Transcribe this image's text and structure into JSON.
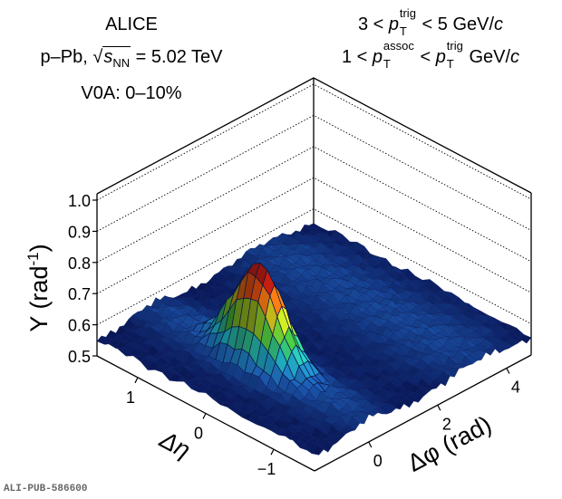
{
  "chart_data": {
    "type": "surface3d",
    "title_lines_left": [
      "ALICE",
      "p–Pb, √s_NN = 5.02 TeV",
      "V0A: 0–10%"
    ],
    "title_lines_right": [
      "3 < p_T^trig < 5 GeV/c",
      "1 < p_T^assoc < p_T^trig GeV/c"
    ],
    "experiment": "ALICE",
    "system": "p–Pb",
    "energy_label": "= 5.02 TeV",
    "centrality": "V0A: 0–10%",
    "ptrig_range": "3 < p_T^trig < 5 GeV/c",
    "passoc_range": "1 < p_T^assoc < p_T^trig GeV/c",
    "zlabel": "Y (rad⁻¹)",
    "xlabel": "Δφ (rad)",
    "ylabel": "Δη",
    "zlim": [
      0.5,
      1.0
    ],
    "z_ticks": [
      "0.5",
      "0.6",
      "0.7",
      "0.8",
      "0.9",
      "1.0"
    ],
    "x_range": [
      -1.5708,
      4.7124
    ],
    "x_ticks": [
      "0",
      "2",
      "4"
    ],
    "y_range": [
      -1.6,
      1.6
    ],
    "y_ticks": [
      "1",
      "0",
      "−1"
    ],
    "grid": true,
    "surface": {
      "baseline": 0.555,
      "near_side_peak": {
        "dphi": 0,
        "deta": 0,
        "height": 0.89,
        "sigma_dphi": 0.3,
        "sigma_deta": 0.35
      },
      "near_side_ridge": {
        "dphi": 0,
        "height": 0.03,
        "sigma_dphi": 0.5
      },
      "away_side_ridge": {
        "dphi": 3.1416,
        "height": 0.03,
        "sigma_dphi": 0.8
      },
      "noise_amplitude": 0.01,
      "colormap": [
        "#0a1a5c",
        "#1e5fb8",
        "#20b0c0",
        "#3ec040",
        "#b8d820",
        "#f08010",
        "#d02010",
        "#701010"
      ]
    }
  },
  "footer": {
    "pub_id": "ALI-PUB-586600"
  },
  "labels": {
    "alice": "ALICE",
    "ppb": "p–Pb, ",
    "s": "s",
    "nn": "NN",
    "energy": " = 5.02 TeV",
    "v0a": "V0A: 0–10%",
    "r1_pre": "3 < ",
    "p": "p",
    "T": "T",
    "trig": "trig",
    "assoc": "assoc",
    "r1_post": " < 5 GeV/",
    "c": "c",
    "r2_pre": "1 < ",
    "r2_mid": " < ",
    "r2_post": " GeV/",
    "zaxis": "Y (rad",
    "zaxis_sup": "-1",
    "zaxis_end": ")",
    "xaxis": "Δφ (rad)",
    "yaxis": "Δη"
  }
}
